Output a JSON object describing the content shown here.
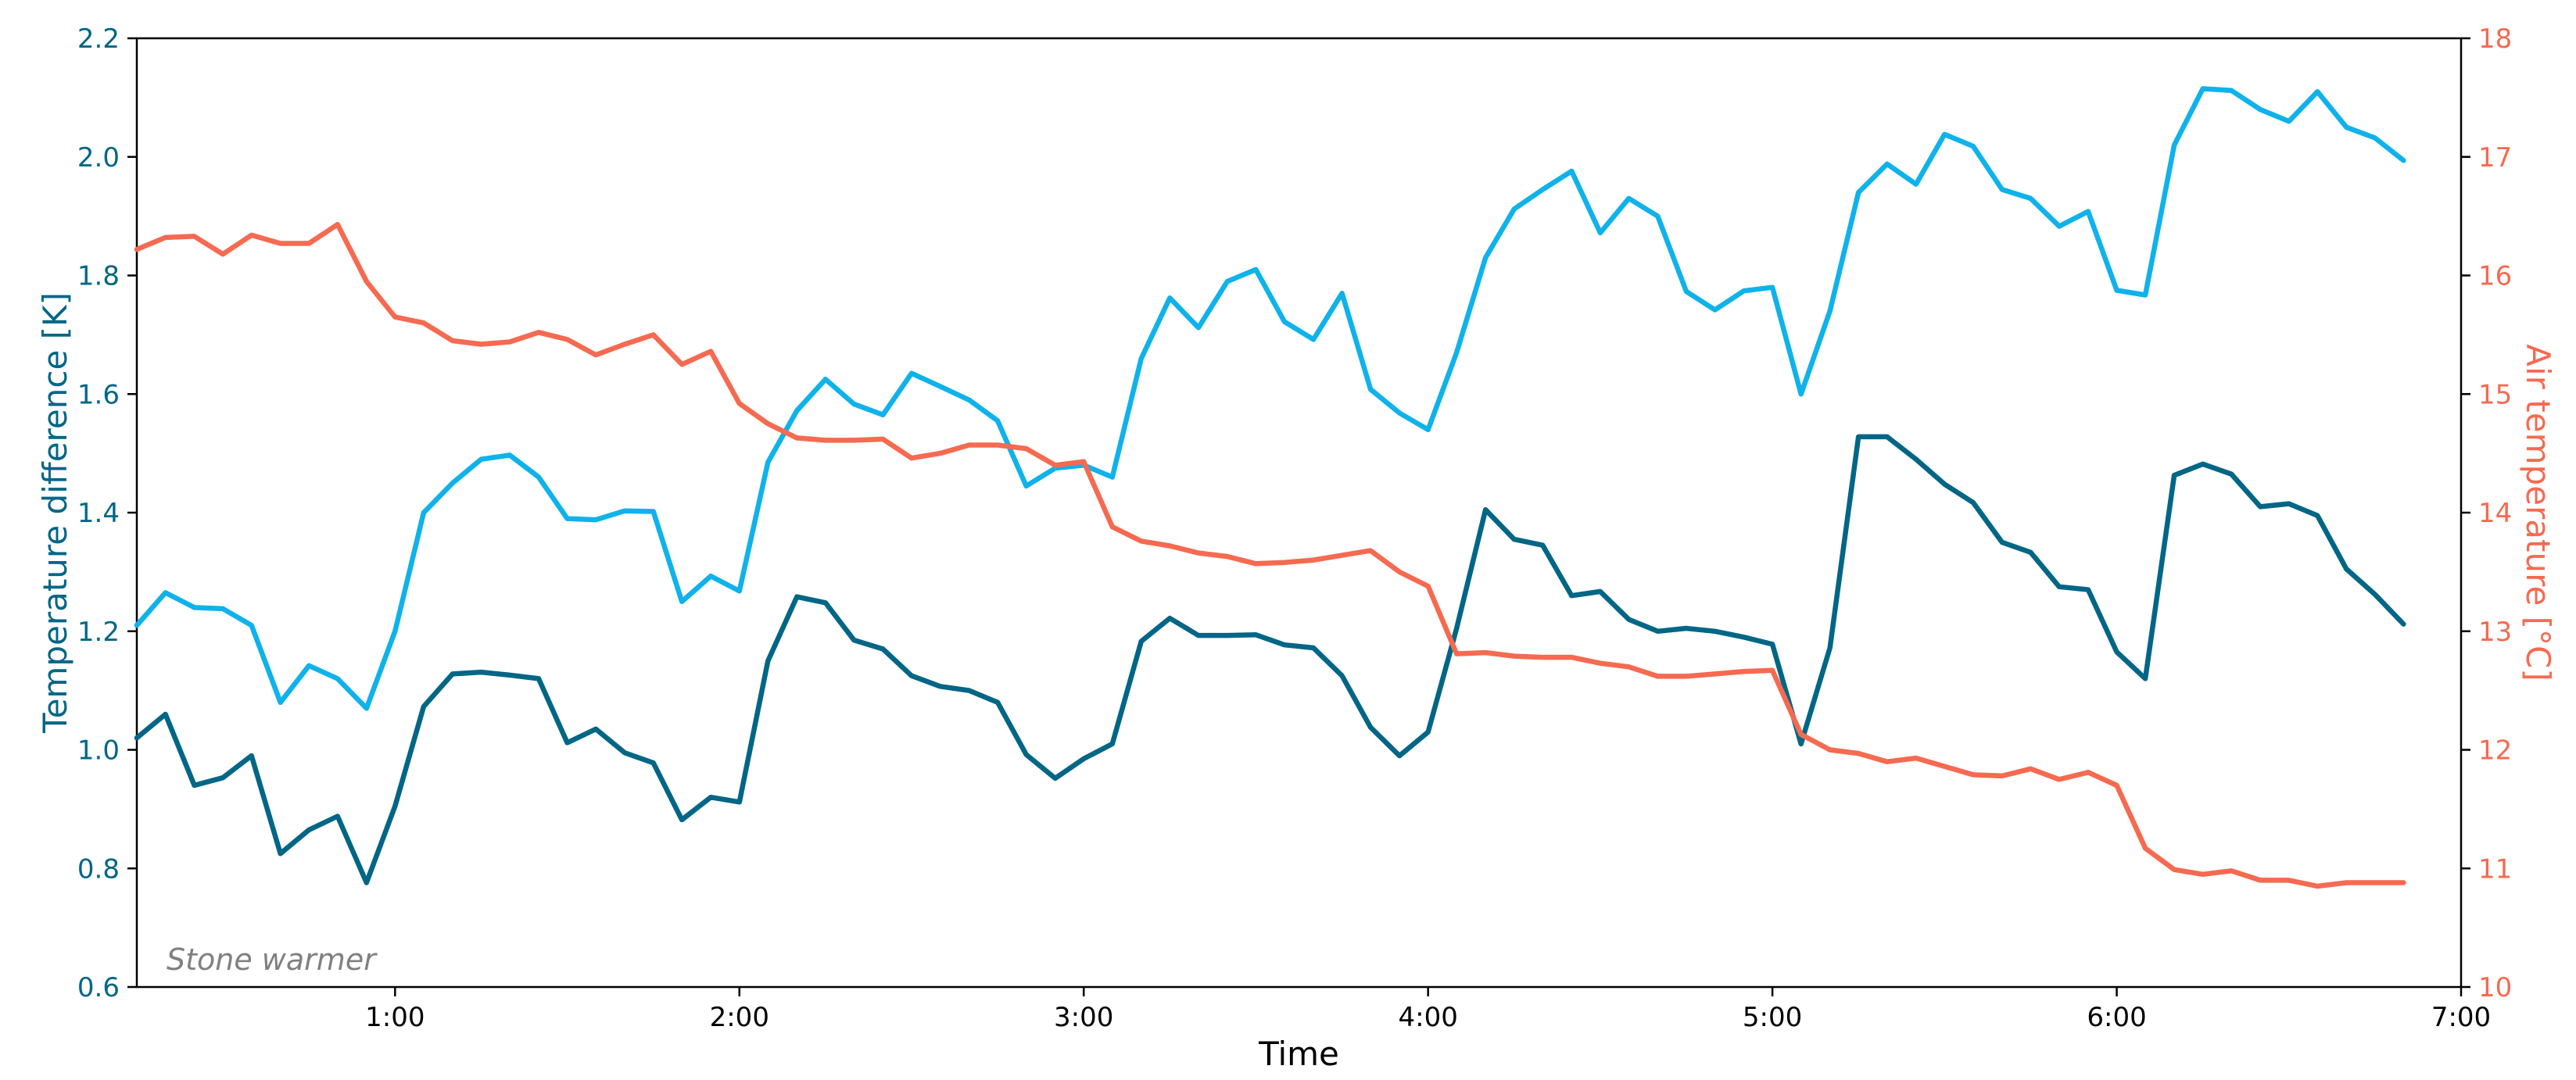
{
  "chart_data": {
    "type": "line",
    "title": "",
    "annotation": "Stone warmer",
    "xlabel": "Time",
    "ylabel_left": "Temperature difference [K]",
    "ylabel_right": "Air temperature [°C]",
    "x_unit": "hours",
    "xlim": [
      0.25,
      7.0
    ],
    "x_ticks": [
      1,
      2,
      3,
      4,
      5,
      6,
      7
    ],
    "x_tick_labels": [
      "1:00",
      "2:00",
      "3:00",
      "4:00",
      "5:00",
      "6:00",
      "7:00"
    ],
    "ylim_left": [
      0.6,
      2.2
    ],
    "y_ticks_left": [
      0.6,
      0.8,
      1.0,
      1.2,
      1.4,
      1.6,
      1.8,
      2.0,
      2.2
    ],
    "y_tick_labels_left": [
      "0.6",
      "0.8",
      "1.0",
      "1.2",
      "1.4",
      "1.6",
      "1.8",
      "2.0",
      "2.2"
    ],
    "ylim_right": [
      10,
      18
    ],
    "y_ticks_right": [
      10,
      11,
      12,
      13,
      14,
      15,
      16,
      17,
      18
    ],
    "y_tick_labels_right": [
      "10",
      "11",
      "12",
      "13",
      "14",
      "15",
      "16",
      "17",
      "18"
    ],
    "grid": false,
    "colors": {
      "light_series": "#0fb2ea",
      "dark_series": "#006686",
      "air_series": "#f56a50",
      "left_axis": "#006686",
      "right_axis": "#f56a50",
      "annotation": "#808080"
    },
    "series": [
      {
        "axis": "left",
        "color": "#0fb2ea",
        "x": [
          0.25,
          0.333,
          0.417,
          0.5,
          0.583,
          0.667,
          0.75,
          0.833,
          0.917,
          1.0,
          1.083,
          1.167,
          1.25,
          1.333,
          1.417,
          1.5,
          1.583,
          1.667,
          1.75,
          1.833,
          1.917,
          2.0,
          2.083,
          2.167,
          2.25,
          2.333,
          2.417,
          2.5,
          2.583,
          2.667,
          2.75,
          2.833,
          2.917,
          3.0,
          3.083,
          3.167,
          3.25,
          3.333,
          3.417,
          3.5,
          3.583,
          3.667,
          3.75,
          3.833,
          3.917,
          4.0,
          4.083,
          4.167,
          4.25,
          4.333,
          4.417,
          4.5,
          4.583,
          4.667,
          4.75,
          4.833,
          4.917,
          5.0,
          5.083,
          5.167,
          5.25,
          5.333,
          5.417,
          5.5,
          5.583,
          5.667,
          5.75,
          5.833,
          5.917,
          6.0,
          6.083,
          6.167,
          6.25,
          6.333,
          6.417,
          6.5,
          6.583,
          6.667,
          6.75,
          6.833
        ],
        "values": [
          1.21,
          1.265,
          1.24,
          1.238,
          1.21,
          1.08,
          1.142,
          1.12,
          1.07,
          1.2,
          1.4,
          1.45,
          1.49,
          1.497,
          1.46,
          1.39,
          1.388,
          1.403,
          1.402,
          1.25,
          1.293,
          1.268,
          1.485,
          1.572,
          1.625,
          1.583,
          1.565,
          1.635,
          1.613,
          1.59,
          1.555,
          1.445,
          1.475,
          1.48,
          1.46,
          1.66,
          1.762,
          1.712,
          1.79,
          1.81,
          1.722,
          1.692,
          1.77,
          1.608,
          1.568,
          1.54,
          1.67,
          1.83,
          1.912,
          1.945,
          1.976,
          1.872,
          1.93,
          1.9,
          1.773,
          1.742,
          1.774,
          1.78,
          1.6,
          1.74,
          1.94,
          1.988,
          1.954,
          2.038,
          2.018,
          1.945,
          1.93,
          1.883,
          1.908,
          1.775,
          1.767,
          2.02,
          2.115,
          2.112,
          2.08,
          2.06,
          2.11,
          2.05,
          2.032,
          1.994
        ]
      },
      {
        "axis": "left",
        "color": "#006686",
        "x": [
          0.25,
          0.333,
          0.417,
          0.5,
          0.583,
          0.667,
          0.75,
          0.833,
          0.917,
          1.0,
          1.083,
          1.167,
          1.25,
          1.333,
          1.417,
          1.5,
          1.583,
          1.667,
          1.75,
          1.833,
          1.917,
          2.0,
          2.083,
          2.167,
          2.25,
          2.333,
          2.417,
          2.5,
          2.583,
          2.667,
          2.75,
          2.833,
          2.917,
          3.0,
          3.083,
          3.167,
          3.25,
          3.333,
          3.417,
          3.5,
          3.583,
          3.667,
          3.75,
          3.833,
          3.917,
          4.0,
          4.083,
          4.167,
          4.25,
          4.333,
          4.417,
          4.5,
          4.583,
          4.667,
          4.75,
          4.833,
          4.917,
          5.0,
          5.083,
          5.167,
          5.25,
          5.333,
          5.417,
          5.5,
          5.583,
          5.667,
          5.75,
          5.833,
          5.917,
          6.0,
          6.083,
          6.167,
          6.25,
          6.333,
          6.417,
          6.5,
          6.583,
          6.667,
          6.75,
          6.833
        ],
        "values": [
          1.02,
          1.06,
          0.94,
          0.953,
          0.99,
          0.825,
          0.865,
          0.888,
          0.776,
          0.905,
          1.073,
          1.128,
          1.131,
          1.126,
          1.12,
          1.012,
          1.035,
          0.995,
          0.978,
          0.882,
          0.92,
          0.912,
          1.15,
          1.258,
          1.248,
          1.185,
          1.17,
          1.125,
          1.107,
          1.1,
          1.08,
          0.992,
          0.952,
          0.985,
          1.01,
          1.183,
          1.222,
          1.193,
          1.193,
          1.194,
          1.177,
          1.172,
          1.125,
          1.038,
          0.99,
          1.03,
          1.205,
          1.405,
          1.355,
          1.345,
          1.26,
          1.267,
          1.22,
          1.2,
          1.205,
          1.2,
          1.19,
          1.178,
          1.01,
          1.172,
          1.528,
          1.528,
          1.49,
          1.448,
          1.417,
          1.35,
          1.333,
          1.275,
          1.27,
          1.165,
          1.12,
          1.463,
          1.482,
          1.465,
          1.41,
          1.415,
          1.395,
          1.305,
          1.262,
          1.212
        ]
      },
      {
        "axis": "right",
        "color": "#f56a50",
        "x": [
          0.25,
          0.333,
          0.417,
          0.5,
          0.583,
          0.667,
          0.75,
          0.833,
          0.917,
          1.0,
          1.083,
          1.167,
          1.25,
          1.333,
          1.417,
          1.5,
          1.583,
          1.667,
          1.75,
          1.833,
          1.917,
          2.0,
          2.083,
          2.167,
          2.25,
          2.333,
          2.417,
          2.5,
          2.583,
          2.667,
          2.75,
          2.833,
          2.917,
          3.0,
          3.083,
          3.167,
          3.25,
          3.333,
          3.417,
          3.5,
          3.583,
          3.667,
          3.75,
          3.833,
          3.917,
          4.0,
          4.083,
          4.167,
          4.25,
          4.333,
          4.417,
          4.5,
          4.583,
          4.667,
          4.75,
          4.833,
          4.917,
          5.0,
          5.083,
          5.167,
          5.25,
          5.333,
          5.417,
          5.5,
          5.583,
          5.667,
          5.75,
          5.833,
          5.917,
          6.0,
          6.083,
          6.167,
          6.25,
          6.333,
          6.417,
          6.5,
          6.583,
          6.667,
          6.75,
          6.833
        ],
        "values": [
          16.22,
          16.32,
          16.33,
          16.18,
          16.34,
          16.27,
          16.27,
          16.43,
          15.95,
          15.65,
          15.6,
          15.45,
          15.42,
          15.44,
          15.52,
          15.46,
          15.33,
          15.42,
          15.5,
          15.25,
          15.36,
          14.92,
          14.75,
          14.63,
          14.61,
          14.61,
          14.62,
          14.46,
          14.5,
          14.57,
          14.57,
          14.54,
          14.4,
          14.43,
          13.88,
          13.76,
          13.72,
          13.66,
          13.63,
          13.57,
          13.58,
          13.6,
          13.64,
          13.68,
          13.5,
          13.38,
          12.81,
          12.82,
          12.79,
          12.78,
          12.78,
          12.73,
          12.7,
          12.62,
          12.62,
          12.64,
          12.66,
          12.67,
          12.13,
          12.0,
          11.97,
          11.9,
          11.93,
          11.86,
          11.79,
          11.78,
          11.84,
          11.75,
          11.81,
          11.7,
          11.17,
          10.99,
          10.95,
          10.98,
          10.9,
          10.9,
          10.85,
          10.88,
          10.88,
          10.88
        ]
      }
    ]
  }
}
